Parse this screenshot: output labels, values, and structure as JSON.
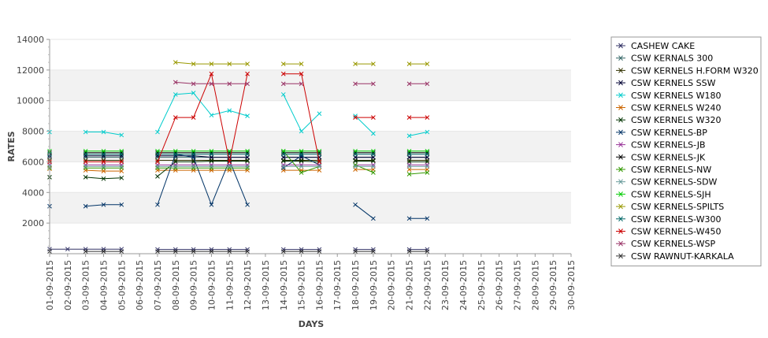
{
  "chart_data": {
    "type": "line",
    "title": "",
    "xlabel": "DAYS",
    "ylabel": "RATES",
    "ylim": [
      0,
      14000
    ],
    "y_ticks": [
      2000,
      4000,
      6000,
      8000,
      10000,
      12000,
      14000
    ],
    "grid": "alternating horizontal bands",
    "legend_position": "right",
    "x": [
      "01-09-2015",
      "02-09-2015",
      "03-09-2015",
      "04-09-2015",
      "05-09-2015",
      "06-09-2015",
      "07-09-2015",
      "08-09-2015",
      "09-09-2015",
      "10-09-2015",
      "11-09-2015",
      "12-09-2015",
      "13-09-2015",
      "14-09-2015",
      "15-09-2015",
      "16-09-2015",
      "17-09-2015",
      "18-09-2015",
      "19-09-2015",
      "20-09-2015",
      "21-09-2015",
      "22-09-2015",
      "23-09-2015",
      "24-09-2015",
      "25-09-2015",
      "26-09-2015",
      "27-09-2015",
      "28-09-2015",
      "29-09-2015",
      "30-09-2015"
    ],
    "series": [
      {
        "name": "CASHEW CAKE",
        "color": "#333366",
        "values": [
          300,
          300,
          300,
          300,
          300,
          null,
          280,
          280,
          280,
          280,
          280,
          280,
          null,
          280,
          280,
          280,
          null,
          280,
          280,
          null,
          280,
          280,
          null,
          null,
          null,
          null,
          null,
          null,
          null,
          null
        ]
      },
      {
        "name": "CSW KERNALS 300",
        "color": "#336666",
        "values": [
          6300,
          null,
          6300,
          6300,
          6300,
          null,
          6300,
          6300,
          6300,
          6300,
          6300,
          6300,
          null,
          6300,
          6300,
          6300,
          null,
          6300,
          6300,
          null,
          6300,
          6300,
          null,
          null,
          null,
          null,
          null,
          null,
          null,
          null
        ]
      },
      {
        "name": "CSW KERNELS H.FORM W320",
        "color": "#333300",
        "values": [
          6100,
          null,
          6100,
          6100,
          6100,
          null,
          6100,
          6100,
          6100,
          6100,
          6100,
          6100,
          null,
          6100,
          6100,
          6100,
          null,
          6100,
          6100,
          null,
          6100,
          6100,
          null,
          null,
          null,
          null,
          null,
          null,
          null,
          null
        ]
      },
      {
        "name": "CSW KERNELS SSW",
        "color": "#000033",
        "values": [
          6400,
          null,
          6400,
          6400,
          6400,
          null,
          6400,
          6400,
          6400,
          6300,
          6300,
          6300,
          null,
          6300,
          6300,
          6300,
          null,
          6300,
          6300,
          null,
          6300,
          6300,
          null,
          null,
          null,
          null,
          null,
          null,
          null,
          null
        ]
      },
      {
        "name": "CSW KERNELS W180",
        "color": "#00cccc",
        "values": [
          7950,
          null,
          7950,
          7950,
          7750,
          null,
          7950,
          10400,
          10500,
          9050,
          9350,
          9000,
          null,
          10400,
          8000,
          9150,
          null,
          9000,
          7850,
          null,
          7700,
          7950,
          null,
          null,
          null,
          null,
          null,
          null,
          null,
          null
        ]
      },
      {
        "name": "CSW KERNELS W240",
        "color": "#cc6600",
        "values": [
          5550,
          null,
          5450,
          5400,
          5400,
          null,
          5450,
          5450,
          5450,
          5450,
          5450,
          5450,
          null,
          5450,
          5450,
          5450,
          null,
          5500,
          5500,
          null,
          5500,
          5500,
          null,
          null,
          null,
          null,
          null,
          null,
          null,
          null
        ]
      },
      {
        "name": "CSW KERNELS W320",
        "color": "#003300",
        "values": [
          5000,
          null,
          5000,
          4900,
          4950,
          null,
          5050,
          6000,
          6000,
          6050,
          6050,
          6050,
          null,
          6050,
          6050,
          6000,
          null,
          6050,
          6050,
          null,
          6000,
          6000,
          null,
          null,
          null,
          null,
          null,
          null,
          null,
          null
        ]
      },
      {
        "name": "CSW KERNELS-BP",
        "color": "#003366",
        "values": [
          3100,
          null,
          3100,
          3200,
          3200,
          null,
          3200,
          6500,
          6300,
          3200,
          6100,
          3200,
          null,
          5600,
          6400,
          5800,
          null,
          3200,
          2300,
          null,
          2300,
          2300,
          null,
          null,
          null,
          null,
          null,
          null,
          null,
          null
        ]
      },
      {
        "name": "CSW KERNELS-JB",
        "color": "#993399",
        "values": [
          5800,
          null,
          5800,
          5800,
          5800,
          null,
          5800,
          5800,
          5800,
          5800,
          5800,
          5800,
          null,
          5800,
          5800,
          5800,
          null,
          5800,
          5800,
          null,
          5800,
          5800,
          null,
          null,
          null,
          null,
          null,
          null,
          null,
          null
        ]
      },
      {
        "name": "CSW KERNELS-JK",
        "color": "#000000",
        "values": [
          6600,
          null,
          6600,
          6600,
          6600,
          null,
          6600,
          6600,
          6600,
          6600,
          6600,
          6600,
          null,
          6600,
          6600,
          6600,
          null,
          6600,
          6600,
          null,
          6600,
          6600,
          null,
          null,
          null,
          null,
          null,
          null,
          null,
          null
        ]
      },
      {
        "name": "CSW KERNELS-NW",
        "color": "#339900",
        "values": [
          5600,
          null,
          5600,
          5600,
          5600,
          null,
          5600,
          5600,
          5600,
          5600,
          5600,
          5600,
          null,
          6700,
          5300,
          5700,
          null,
          5800,
          5300,
          null,
          5200,
          5300,
          null,
          null,
          null,
          null,
          null,
          null,
          null,
          null
        ]
      },
      {
        "name": "CSW KERNELS-SDW",
        "color": "#669999",
        "values": [
          5700,
          null,
          5700,
          5700,
          5700,
          null,
          5700,
          5700,
          5700,
          5700,
          5700,
          5700,
          null,
          5700,
          5700,
          5700,
          null,
          5700,
          5700,
          null,
          5700,
          5700,
          null,
          null,
          null,
          null,
          null,
          null,
          null,
          null
        ]
      },
      {
        "name": "CSW KERNELS-SJH",
        "color": "#00cc00",
        "values": [
          6700,
          null,
          6700,
          6700,
          6700,
          null,
          6700,
          6700,
          6700,
          6700,
          6700,
          6700,
          null,
          6700,
          6700,
          6700,
          null,
          6700,
          6700,
          null,
          6700,
          6700,
          null,
          null,
          null,
          null,
          null,
          null,
          null,
          null
        ]
      },
      {
        "name": "CSW KERNELS-SPILTS",
        "color": "#999900",
        "values": [
          null,
          null,
          null,
          null,
          null,
          null,
          null,
          12500,
          12400,
          12400,
          12400,
          12400,
          null,
          12400,
          12400,
          null,
          null,
          12400,
          12400,
          null,
          12400,
          12400,
          null,
          null,
          null,
          null,
          null,
          null,
          null,
          null
        ]
      },
      {
        "name": "CSW KERNELS-W300",
        "color": "#006666",
        "values": [
          6500,
          null,
          6500,
          6500,
          6500,
          null,
          6500,
          6500,
          6500,
          6500,
          6500,
          6500,
          null,
          6500,
          6500,
          6500,
          null,
          6500,
          6500,
          null,
          6500,
          6500,
          null,
          null,
          null,
          null,
          null,
          null,
          null,
          null
        ]
      },
      {
        "name": "CSW KERNELS-W450",
        "color": "#cc0000",
        "values": [
          6000,
          null,
          6000,
          6000,
          6000,
          null,
          6000,
          8900,
          8900,
          11750,
          6000,
          11750,
          null,
          11750,
          11750,
          6000,
          null,
          8900,
          8900,
          null,
          8900,
          8900,
          null,
          null,
          null,
          null,
          null,
          null,
          null,
          null
        ]
      },
      {
        "name": "CSW KERNELS-WSP",
        "color": "#993366",
        "values": [
          null,
          null,
          null,
          null,
          null,
          null,
          null,
          11200,
          11100,
          11100,
          11100,
          11100,
          null,
          11100,
          11100,
          null,
          null,
          11100,
          11100,
          null,
          11100,
          11100,
          null,
          null,
          null,
          null,
          null,
          null,
          null,
          null
        ]
      },
      {
        "name": "CSW RAWNUT-KARKALA",
        "color": "#333333",
        "values": [
          150,
          null,
          150,
          150,
          150,
          null,
          150,
          150,
          150,
          150,
          150,
          150,
          null,
          150,
          150,
          150,
          null,
          150,
          150,
          null,
          150,
          150,
          null,
          null,
          null,
          null,
          null,
          null,
          null,
          null
        ]
      }
    ]
  }
}
